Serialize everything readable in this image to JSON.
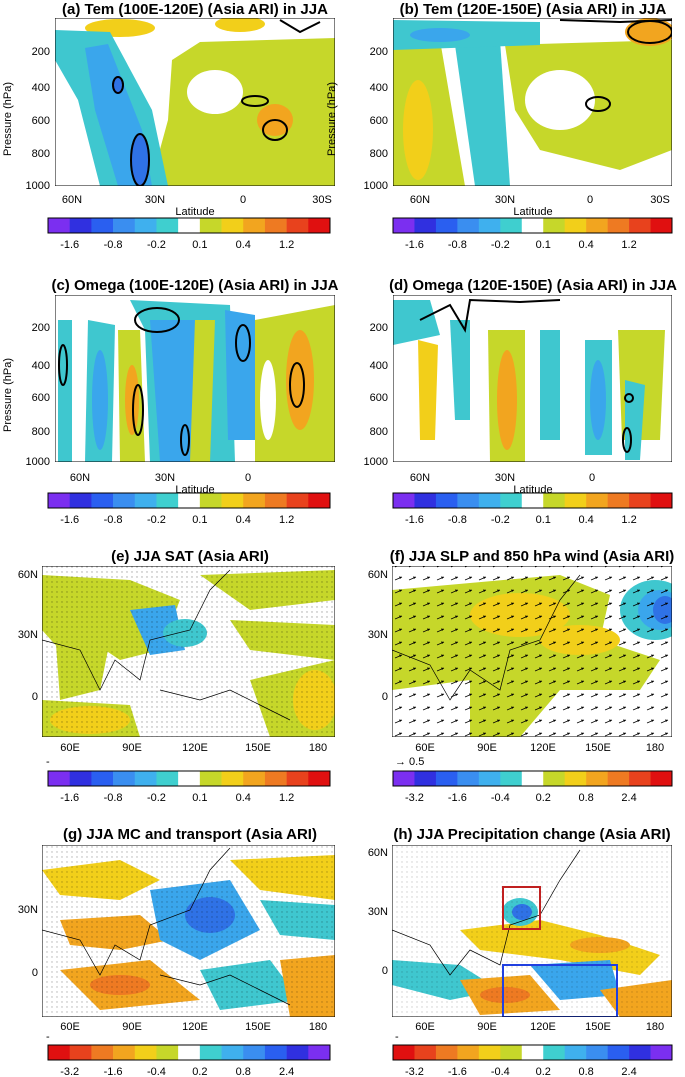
{
  "panels": [
    {
      "title": "(a) Tem (100E-120E) (Asia ARI) in JJA",
      "y_label": "Pressure (hPa)",
      "y_ticks": [
        "200",
        "400",
        "600",
        "800",
        "1000"
      ],
      "x_ticks": [
        "60N",
        "30N",
        "0",
        "30S"
      ],
      "x_label": "Latitude",
      "colorbar_labels": [
        "-1.6",
        "-0.8",
        "-0.2",
        "0.1",
        "0.4",
        "1.2"
      ]
    },
    {
      "title": "(b) Tem (120E-150E) (Asia ARI) in JJA",
      "y_label": "Pressure (hPa)",
      "y_ticks": [
        "200",
        "400",
        "600",
        "800",
        "1000"
      ],
      "x_ticks": [
        "60N",
        "30N",
        "0",
        "30S"
      ],
      "x_label": "Latitude",
      "colorbar_labels": [
        "-1.6",
        "-0.8",
        "-0.2",
        "0.1",
        "0.4",
        "1.2"
      ]
    },
    {
      "title": "(c) Omega (100E-120E) (Asia ARI) in JJA",
      "y_label": "Pressure (hPa)",
      "y_ticks": [
        "200",
        "400",
        "600",
        "800",
        "1000"
      ],
      "x_ticks": [
        "60N",
        "30N",
        "0"
      ],
      "x_label": "Latitude",
      "colorbar_labels": [
        "-1.6",
        "-0.8",
        "-0.2",
        "0.1",
        "0.4",
        "1.2"
      ]
    },
    {
      "title": "(d) Omega (120E-150E) (Asia ARI) in JJA",
      "y_ticks": [
        "200",
        "400",
        "600",
        "800",
        "1000"
      ],
      "x_ticks": [
        "60N",
        "30N",
        "0"
      ],
      "x_label": "Latitude",
      "colorbar_labels": [
        "-1.6",
        "-0.8",
        "-0.2",
        "0.1",
        "0.4",
        "1.2"
      ]
    },
    {
      "title": "(e) JJA SAT (Asia ARI)",
      "y_ticks": [
        "60N",
        "30N",
        "0"
      ],
      "x_ticks": [
        "60E",
        "90E",
        "120E",
        "150E",
        "180"
      ],
      "note": "-",
      "colorbar_labels": [
        "-1.6",
        "-0.8",
        "-0.2",
        "0.1",
        "0.4",
        "1.2"
      ]
    },
    {
      "title": "(f) JJA SLP and 850 hPa wind (Asia ARI)",
      "y_ticks": [
        "60N",
        "30N",
        "0"
      ],
      "x_ticks": [
        "60E",
        "90E",
        "120E",
        "150E",
        "180"
      ],
      "note": "→ 0.5",
      "colorbar_labels": [
        "-3.2",
        "-1.6",
        "-0.4",
        "0.2",
        "0.8",
        "2.4"
      ]
    },
    {
      "title": "(g) JJA MC and transport (Asia ARI)",
      "y_ticks": [
        "30N",
        "0"
      ],
      "x_ticks": [
        "60E",
        "90E",
        "120E",
        "150E",
        "180"
      ],
      "note": "-",
      "colorbar_labels": [
        "-3.2",
        "-1.6",
        "-0.4",
        "0.2",
        "0.8",
        "2.4"
      ]
    },
    {
      "title": "(h) JJA Precipitation change (Asia ARI)",
      "y_ticks": [
        "60N",
        "30N",
        "0"
      ],
      "x_ticks": [
        "60E",
        "90E",
        "120E",
        "150E",
        "180"
      ],
      "note": "-",
      "colorbar_labels": [
        "-3.2",
        "-1.6",
        "-0.4",
        "0.2",
        "0.8",
        "2.4"
      ]
    }
  ]
}
